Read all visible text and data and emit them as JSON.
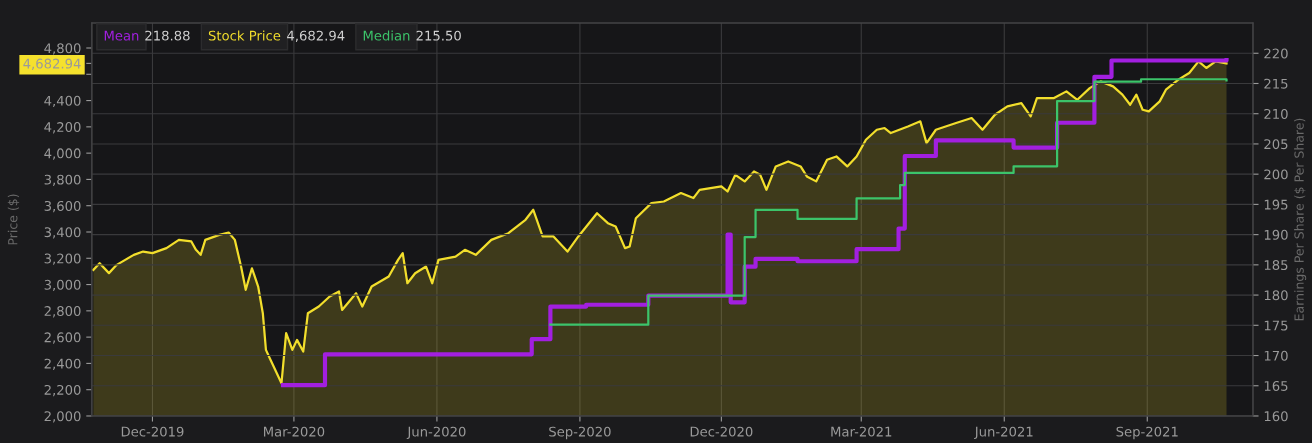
{
  "chart_data": {
    "type": "area",
    "ylabel": "Price ($)",
    "y2label": "Earnings Per Share ($ Per Share)",
    "xlim": [
      "2019-10-23",
      "2021-11-08"
    ],
    "xticks": [
      {
        "value": "2019-12-01",
        "label": "Dec-2019"
      },
      {
        "value": "2020-03-01",
        "label": "Mar-2020"
      },
      {
        "value": "2020-06-01",
        "label": "Jun-2020"
      },
      {
        "value": "2020-09-01",
        "label": "Sep-2020"
      },
      {
        "value": "2020-12-01",
        "label": "Dec-2020"
      },
      {
        "value": "2021-03-01",
        "label": "Mar-2021"
      },
      {
        "value": "2021-06-01",
        "label": "Jun-2021"
      },
      {
        "value": "2021-09-01",
        "label": "Sep-2021"
      }
    ],
    "ylim": [
      2000,
      4990
    ],
    "yticks": [
      {
        "value": 2000,
        "label": "2,000"
      },
      {
        "value": 2200,
        "label": "2,200"
      },
      {
        "value": 2400,
        "label": "2,400"
      },
      {
        "value": 2600,
        "label": "2,600"
      },
      {
        "value": 2800,
        "label": "2,800"
      },
      {
        "value": 3000,
        "label": "3,000"
      },
      {
        "value": 3200,
        "label": "3,200"
      },
      {
        "value": 3400,
        "label": "3,400"
      },
      {
        "value": 3600,
        "label": "3,600"
      },
      {
        "value": 3800,
        "label": "3,800"
      },
      {
        "value": 4000,
        "label": "4,000"
      },
      {
        "value": 4200,
        "label": "4,200"
      },
      {
        "value": 4400,
        "label": "4,400"
      },
      {
        "value": 4600,
        "label": null
      },
      {
        "value": 4682.94,
        "label": "4,682.94"
      },
      {
        "value": 4800,
        "label": "4,800"
      }
    ],
    "y2lim": [
      160,
      225
    ],
    "y2ticks": [
      160,
      165,
      170,
      175,
      180,
      185,
      190,
      195,
      200,
      205,
      210,
      215,
      220
    ],
    "grid": true,
    "legend": "top left",
    "annotations": [
      "218.88",
      "4,682.94",
      "215.50"
    ],
    "series": [
      {
        "name": "Mean",
        "type": "step",
        "axis": "y2",
        "color": "#a21fe0",
        "x": [
          "2020-02-23",
          "2020-03-21",
          "2020-08-01",
          "2020-08-13",
          "2020-09-05",
          "2020-10-15",
          "2020-12-05",
          "2020-12-07",
          "2020-12-16",
          "2020-12-23",
          "2021-01-19",
          "2021-02-26",
          "2021-03-25",
          "2021-03-29",
          "2021-04-18",
          "2021-06-07",
          "2021-07-05",
          "2021-07-29",
          "2021-08-09",
          "2021-10-22"
        ],
        "values": [
          165.1,
          170.2,
          172.7,
          178.1,
          178.4,
          179.9,
          190.0,
          178.8,
          184.7,
          186.0,
          185.6,
          187.6,
          191.0,
          203.0,
          205.6,
          204.4,
          208.5,
          216.1,
          218.8,
          218.88
        ]
      },
      {
        "name": "Stock Price",
        "axis": "y",
        "color": "#f2de2c",
        "x": [
          "2019-10-24",
          "2019-10-28",
          "2019-11-03",
          "2019-11-08",
          "2019-11-19",
          "2019-11-25",
          "2019-12-01",
          "2019-12-10",
          "2019-12-18",
          "2019-12-26",
          "2019-12-29",
          "2020-01-01",
          "2020-01-04",
          "2020-01-13",
          "2020-01-19",
          "2020-01-23",
          "2020-01-27",
          "2020-01-30",
          "2020-02-03",
          "2020-02-07",
          "2020-02-10",
          "2020-02-12",
          "2020-02-15",
          "2020-02-19",
          "2020-02-22",
          "2020-02-25",
          "2020-02-29",
          "2020-03-03",
          "2020-03-07",
          "2020-03-10",
          "2020-03-17",
          "2020-03-24",
          "2020-03-30",
          "2020-04-01",
          "2020-04-10",
          "2020-04-14",
          "2020-04-20",
          "2020-05-01",
          "2020-05-07",
          "2020-05-10",
          "2020-05-13",
          "2020-05-18",
          "2020-05-25",
          "2020-05-29",
          "2020-06-02",
          "2020-06-13",
          "2020-06-19",
          "2020-06-26",
          "2020-07-06",
          "2020-07-17",
          "2020-07-28",
          "2020-08-02",
          "2020-08-08",
          "2020-08-15",
          "2020-08-24",
          "2020-08-31",
          "2020-09-12",
          "2020-09-19",
          "2020-09-24",
          "2020-09-30",
          "2020-10-03",
          "2020-10-07",
          "2020-10-17",
          "2020-10-25",
          "2020-11-05",
          "2020-11-13",
          "2020-11-17",
          "2020-12-01",
          "2020-12-05",
          "2020-12-10",
          "2020-12-16",
          "2020-12-22",
          "2020-12-26",
          "2020-12-30",
          "2021-01-05",
          "2021-01-13",
          "2021-01-21",
          "2021-01-25",
          "2021-01-31",
          "2021-02-07",
          "2021-02-13",
          "2021-02-20",
          "2021-02-26",
          "2021-03-04",
          "2021-03-11",
          "2021-03-16",
          "2021-03-20",
          "2021-03-31",
          "2021-04-08",
          "2021-04-12",
          "2021-04-18",
          "2021-05-01",
          "2021-05-11",
          "2021-05-18",
          "2021-05-26",
          "2021-06-03",
          "2021-06-12",
          "2021-06-18",
          "2021-06-22",
          "2021-07-03",
          "2021-07-11",
          "2021-07-18",
          "2021-07-26",
          "2021-08-02",
          "2021-08-10",
          "2021-08-16",
          "2021-08-21",
          "2021-08-25",
          "2021-08-29",
          "2021-09-02",
          "2021-09-09",
          "2021-09-13",
          "2021-09-21",
          "2021-09-28",
          "2021-10-04",
          "2021-10-09",
          "2021-10-15",
          "2021-10-22"
        ],
        "values": [
          3112,
          3163,
          3087,
          3150,
          3226,
          3251,
          3239,
          3277,
          3340,
          3328,
          3264,
          3226,
          3340,
          3378,
          3396,
          3340,
          3137,
          2960,
          3124,
          2985,
          2782,
          2503,
          2426,
          2325,
          2249,
          2630,
          2503,
          2579,
          2490,
          2782,
          2833,
          2909,
          2947,
          2807,
          2934,
          2833,
          2985,
          3061,
          3188,
          3239,
          3010,
          3086,
          3137,
          3010,
          3188,
          3213,
          3264,
          3226,
          3340,
          3391,
          3493,
          3569,
          3366,
          3366,
          3251,
          3366,
          3543,
          3467,
          3442,
          3277,
          3290,
          3505,
          3620,
          3632,
          3696,
          3658,
          3721,
          3747,
          3708,
          3835,
          3785,
          3861,
          3835,
          3721,
          3899,
          3937,
          3899,
          3823,
          3785,
          3950,
          3975,
          3899,
          3975,
          4102,
          4178,
          4191,
          4153,
          4203,
          4242,
          4076,
          4178,
          4229,
          4267,
          4178,
          4292,
          4356,
          4381,
          4280,
          4419,
          4419,
          4470,
          4406,
          4495,
          4546,
          4508,
          4445,
          4368,
          4445,
          4330,
          4318,
          4394,
          4483,
          4559,
          4610,
          4698,
          4648,
          4698,
          4682.94
        ]
      },
      {
        "name": "Median",
        "type": "step",
        "axis": "y2",
        "color": "#3cc46a",
        "x": [
          "2020-08-13",
          "2020-10-15",
          "2020-12-16",
          "2020-12-23",
          "2021-01-19",
          "2021-02-26",
          "2021-03-26",
          "2021-03-29",
          "2021-06-07",
          "2021-07-05",
          "2021-07-29",
          "2021-08-28",
          "2021-10-22"
        ],
        "values": [
          175.1,
          179.9,
          189.6,
          194.1,
          192.6,
          196.0,
          198.2,
          200.2,
          201.3,
          212.1,
          215.3,
          215.7,
          215.5
        ]
      }
    ]
  }
}
